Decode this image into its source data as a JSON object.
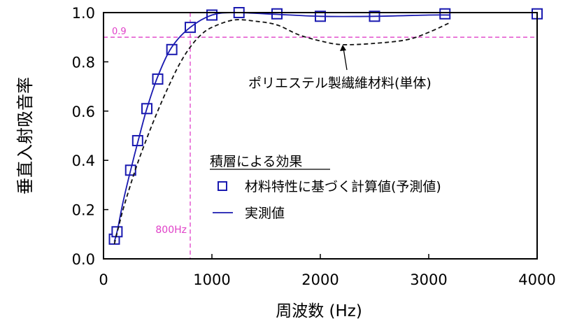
{
  "chart_data": {
    "type": "line",
    "title": "",
    "xlabel": "周波数 (Hz)",
    "ylabel": "垂直入射吸音率",
    "xlim": [
      0,
      4000
    ],
    "ylim": [
      0,
      1.0
    ],
    "x_ticks": [
      0,
      1000,
      2000,
      3000,
      4000
    ],
    "y_ticks": [
      "0.0",
      "0.2",
      "0.4",
      "0.6",
      "0.8",
      "1.0"
    ],
    "grid": false,
    "legend": {
      "position": "lower-center",
      "title": "積層による効果",
      "entries": [
        {
          "label": "材料特性に基づく計算値(予測値)",
          "marker": "square"
        },
        {
          "label": "実測値",
          "marker": "line"
        }
      ]
    },
    "reference_lines": {
      "y_value": 0.9,
      "y_label": "0.9",
      "x_value": 800,
      "x_label": "800Hz",
      "color": "#e040c8"
    },
    "annotations": [
      {
        "text": "ポリエステル製繊維材料(単体)"
      }
    ],
    "series": [
      {
        "name": "材料特性に基づく計算値(予測値)",
        "style": "markers",
        "color": "#1a1ab0",
        "x": [
          100,
          125,
          250,
          315,
          400,
          500,
          630,
          800,
          1000,
          1250,
          1600,
          2000,
          2500,
          3150,
          4000
        ],
        "y": [
          0.08,
          0.11,
          0.36,
          0.48,
          0.61,
          0.73,
          0.85,
          0.94,
          0.99,
          1.0,
          0.995,
          0.985,
          0.985,
          0.995,
          0.995
        ]
      },
      {
        "name": "実測値",
        "style": "solid",
        "color": "#1a1ab0",
        "x": [
          100,
          130,
          180,
          250,
          320,
          400,
          500,
          630,
          800,
          1000,
          1200,
          1500,
          2000,
          2500,
          3000,
          3200
        ],
        "y": [
          0.07,
          0.12,
          0.23,
          0.36,
          0.48,
          0.61,
          0.74,
          0.86,
          0.94,
          0.99,
          1.0,
          0.995,
          0.985,
          0.985,
          0.99,
          0.99
        ]
      },
      {
        "name": "ポリエステル製繊維材料(単体)",
        "style": "dashed",
        "color": "#111111",
        "x": [
          100,
          150,
          200,
          300,
          400,
          500,
          600,
          700,
          800,
          900,
          1000,
          1200,
          1400,
          1600,
          1800,
          2000,
          2200,
          2500,
          2800,
          3000,
          3200
        ],
        "y": [
          0.06,
          0.15,
          0.23,
          0.37,
          0.49,
          0.6,
          0.7,
          0.79,
          0.86,
          0.91,
          0.94,
          0.97,
          0.965,
          0.95,
          0.91,
          0.885,
          0.87,
          0.875,
          0.89,
          0.92,
          0.96
        ]
      }
    ]
  }
}
